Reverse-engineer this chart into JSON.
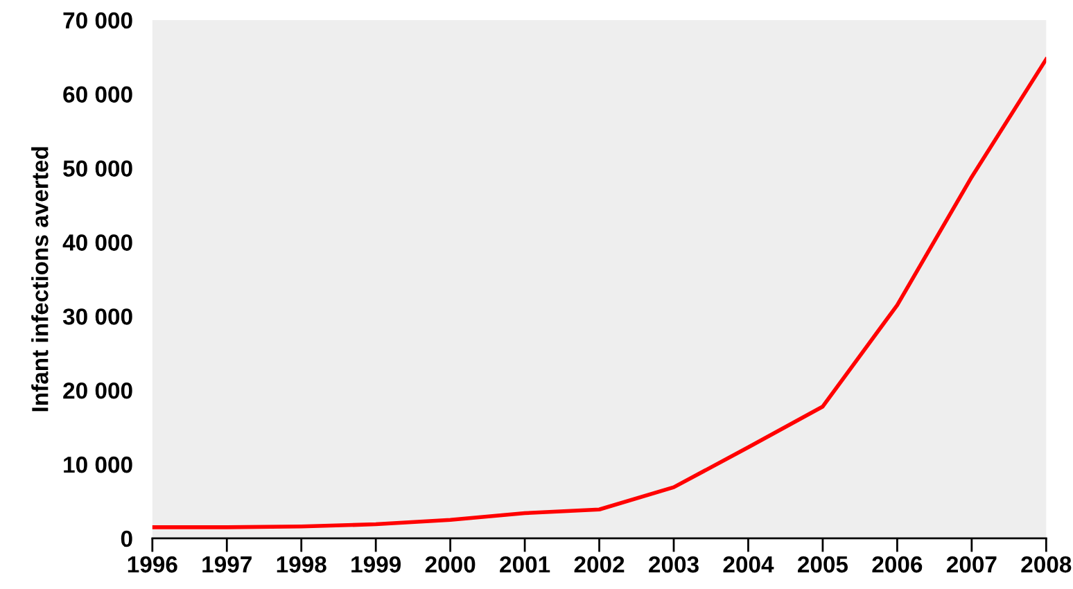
{
  "chart_data": {
    "type": "line",
    "ylabel": "Infant infections averted",
    "x": [
      1996,
      1997,
      1998,
      1999,
      2000,
      2001,
      2002,
      2003,
      2004,
      2005,
      2006,
      2007,
      2008
    ],
    "series": [
      {
        "color": "#ff0000",
        "values": [
          1500,
          1500,
          1600,
          1900,
          2500,
          3400,
          3900,
          6900,
          12300,
          17800,
          31500,
          48800,
          64700
        ]
      }
    ],
    "xlim": [
      1996,
      2008
    ],
    "xticks": [
      1996,
      1997,
      1998,
      1999,
      2000,
      2001,
      2002,
      2003,
      2004,
      2005,
      2006,
      2007,
      2008
    ],
    "ylim": [
      0,
      70000
    ],
    "yticks": [
      {
        "value": 0,
        "label": "0"
      },
      {
        "value": 10000,
        "label": "10 000"
      },
      {
        "value": 20000,
        "label": "20 000"
      },
      {
        "value": 30000,
        "label": "30 000"
      },
      {
        "value": 40000,
        "label": "40 000"
      },
      {
        "value": 50000,
        "label": "50 000"
      },
      {
        "value": 60000,
        "label": "60 000"
      },
      {
        "value": 70000,
        "label": "70 000"
      }
    ],
    "grid": false,
    "legend": false,
    "marker": "none",
    "line_style": "solid"
  }
}
